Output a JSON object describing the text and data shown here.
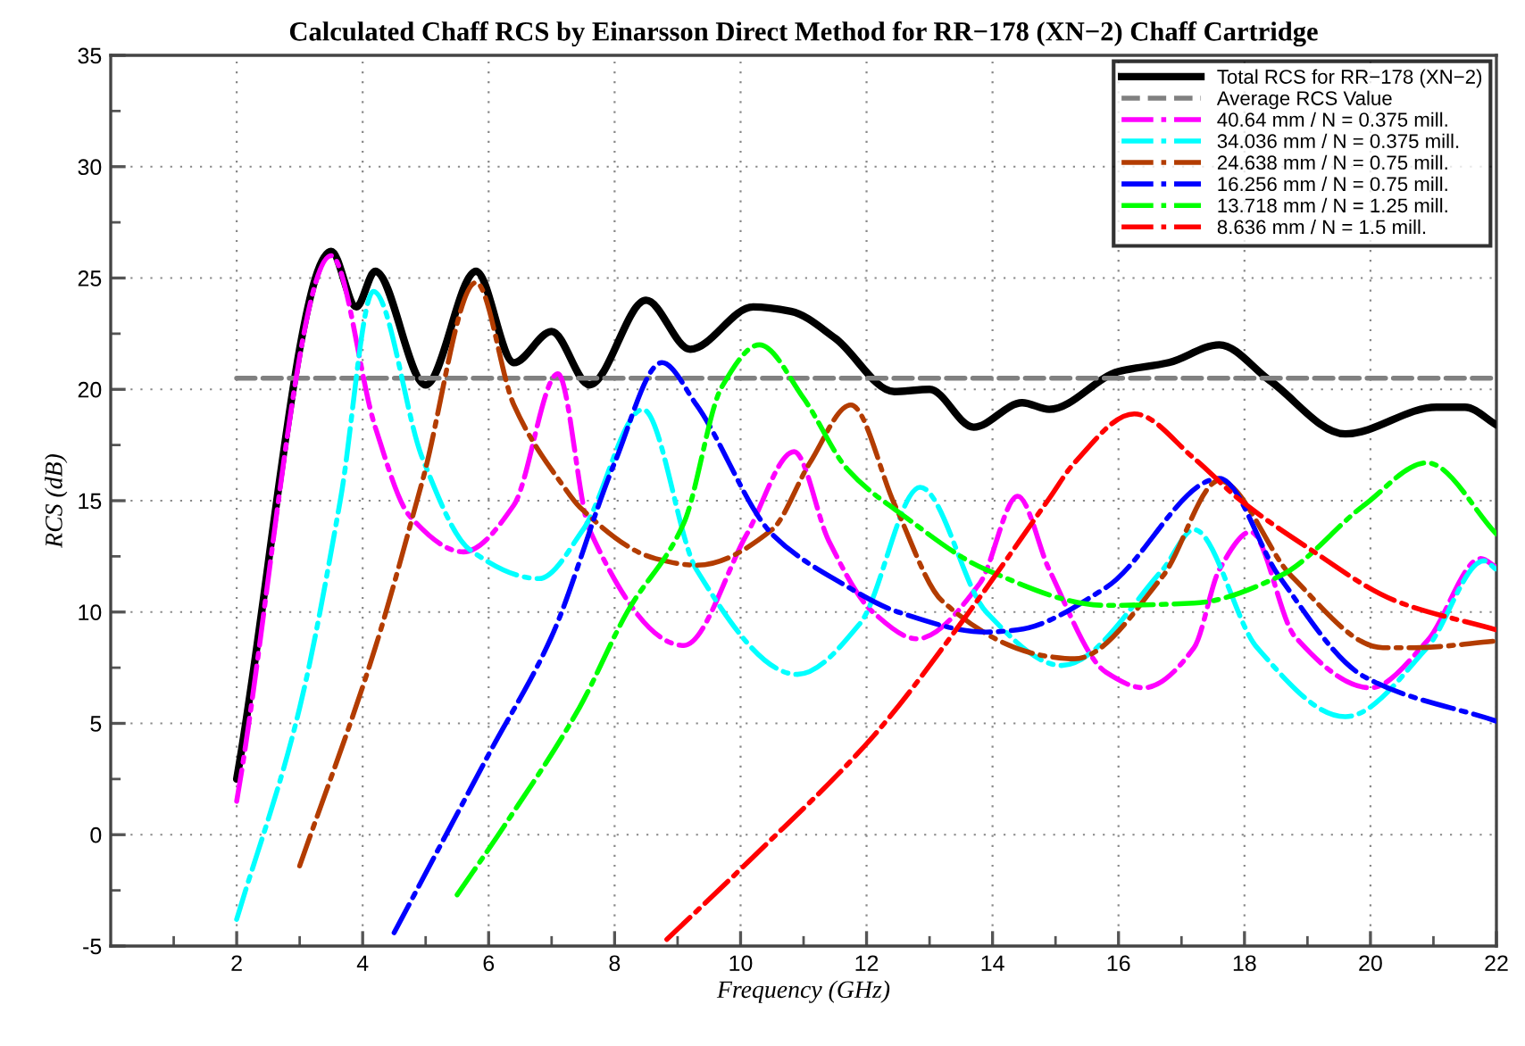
{
  "chart_data": {
    "type": "line",
    "title": "Calculated Chaff RCS by Einarsson Direct Method for RR−178 (XN−2) Chaff Cartridge",
    "xlabel": "Frequency (GHz)",
    "ylabel": "RCS (dB)",
    "xlim": [
      0,
      22
    ],
    "xticks": [
      2,
      4,
      6,
      8,
      10,
      12,
      14,
      16,
      18,
      20,
      22
    ],
    "ylim": [
      -5,
      35
    ],
    "yticks": [
      -5,
      0,
      5,
      10,
      15,
      20,
      25,
      30,
      35
    ],
    "grid": true,
    "legend": "top right",
    "marker": "none",
    "series": [
      {
        "name": "Total RCS for RR−178 (XN−2)",
        "color": "#000000",
        "line_style": "solid",
        "x": [
          2,
          3.5,
          3.9,
          4.2,
          5.0,
          5.8,
          6.4,
          7.0,
          7.6,
          8.5,
          9.2,
          10.2,
          10.8,
          11.5,
          12.44,
          13.0,
          13.7,
          14.47,
          14.9,
          16.0,
          16.8,
          17.6,
          18.4,
          19.6,
          21.05,
          21.5,
          22
        ],
        "values": [
          2.5,
          26.2,
          23.7,
          25.3,
          20.2,
          25.3,
          21.2,
          22.6,
          20.2,
          24.0,
          21.8,
          23.7,
          23.5,
          22.3,
          19.9,
          20.0,
          18.3,
          19.4,
          19.1,
          20.8,
          21.2,
          22.0,
          20.4,
          18.0,
          19.2,
          19.2,
          18.4
        ]
      },
      {
        "name": "Average RCS Value",
        "color": "#808080",
        "line_style": "dashed",
        "x": [
          2,
          22
        ],
        "values": [
          20.5,
          20.5
        ]
      },
      {
        "name": "40.64 mm / N = 0.375 mill.",
        "color": "#ff00ff",
        "line_style": "dashdot",
        "x": [
          2,
          3.5,
          4.2,
          4.75,
          5.6,
          6.4,
          7.1,
          7.6,
          9.1,
          10.1,
          10.85,
          11.4,
          12.1,
          12.8,
          13.8,
          14.4,
          14.9,
          15.8,
          16.4,
          17.2,
          17.6,
          18.1,
          18.8,
          20.0,
          20.9,
          21.75,
          22
        ],
        "values": [
          1.5,
          26.0,
          18.3,
          14.3,
          12.7,
          14.8,
          20.7,
          13.7,
          8.5,
          13.5,
          17.2,
          13.2,
          10.0,
          8.8,
          11.3,
          15.2,
          11.9,
          7.3,
          6.6,
          8.4,
          11.9,
          13.6,
          8.9,
          6.6,
          8.7,
          12.4,
          12.0
        ]
      },
      {
        "name": "34.036 mm / N = 0.375 mill.",
        "color": "#00ffff",
        "line_style": "dashdot",
        "x": [
          2,
          3.0,
          3.65,
          4.17,
          4.95,
          5.7,
          6.8,
          7.5,
          8.45,
          9.3,
          10.9,
          11.9,
          12.85,
          13.9,
          15.1,
          16.7,
          17.2,
          18.2,
          19.6,
          20.9,
          21.8,
          22
        ],
        "values": [
          -3.8,
          5.7,
          15.1,
          24.4,
          16.9,
          12.8,
          11.5,
          13.7,
          19.1,
          11.9,
          7.2,
          9.5,
          15.6,
          10.0,
          7.6,
          11.9,
          13.7,
          8.4,
          5.3,
          8.4,
          12.3,
          11.9
        ]
      },
      {
        "name": "24.638 mm / N = 0.75 mill.",
        "color": "#b33c00",
        "line_style": "dashdot",
        "x": [
          3.0,
          4.2,
          4.95,
          5.8,
          6.4,
          7.2,
          7.45,
          8.65,
          9.3,
          10.5,
          11.1,
          11.75,
          12.45,
          13.2,
          14.9,
          15.3,
          16.7,
          17.6,
          18.75,
          20.2,
          20.7,
          22
        ],
        "values": [
          -1.4,
          8.4,
          15.9,
          24.8,
          19.3,
          15.6,
          14.7,
          12.4,
          12.1,
          13.7,
          16.7,
          19.3,
          14.8,
          10.5,
          8.0,
          7.9,
          11.6,
          15.9,
          11.6,
          8.4,
          8.4,
          8.7
        ]
      },
      {
        "name": "16.256 mm / N = 0.75 mill.",
        "color": "#0000ff",
        "line_style": "dashdot",
        "x": [
          4.5,
          6.0,
          7.0,
          8.0,
          8.75,
          9.3,
          10.5,
          11.6,
          12.5,
          13.9,
          14.39,
          15.8,
          17.6,
          18.55,
          19.9,
          22
        ],
        "values": [
          -4.4,
          3.6,
          8.9,
          16.7,
          21.2,
          19.3,
          13.5,
          11.3,
          10.0,
          9.1,
          9.2,
          11.1,
          16.0,
          11.6,
          7.1,
          5.1
        ]
      },
      {
        "name": "13.718 mm / N = 1.25 mill.",
        "color": "#00ff00",
        "line_style": "dashdot",
        "x": [
          5.5,
          6.25,
          7.44,
          8.2,
          9.1,
          9.7,
          10.3,
          11.0,
          11.7,
          12.6,
          13.9,
          15.8,
          17.2,
          18.55,
          19.9,
          20.9,
          22
        ],
        "values": [
          -2.7,
          0.4,
          5.7,
          10.0,
          14.0,
          20.1,
          22.0,
          19.6,
          16.4,
          14.3,
          11.9,
          10.3,
          10.4,
          11.6,
          14.8,
          16.7,
          13.5
        ]
      },
      {
        "name": "8.636 mm / N = 1.5 mill.",
        "color": "#ff0000",
        "line_style": "dashdot",
        "x": [
          8.83,
          10.2,
          12.1,
          13.55,
          14.9,
          15.3,
          16.25,
          17.2,
          17.9,
          19.0,
          20.4,
          22
        ],
        "values": [
          -4.7,
          -1.0,
          4.4,
          9.7,
          15.1,
          16.7,
          18.9,
          16.9,
          15.1,
          12.9,
          10.5,
          9.2
        ]
      }
    ]
  }
}
